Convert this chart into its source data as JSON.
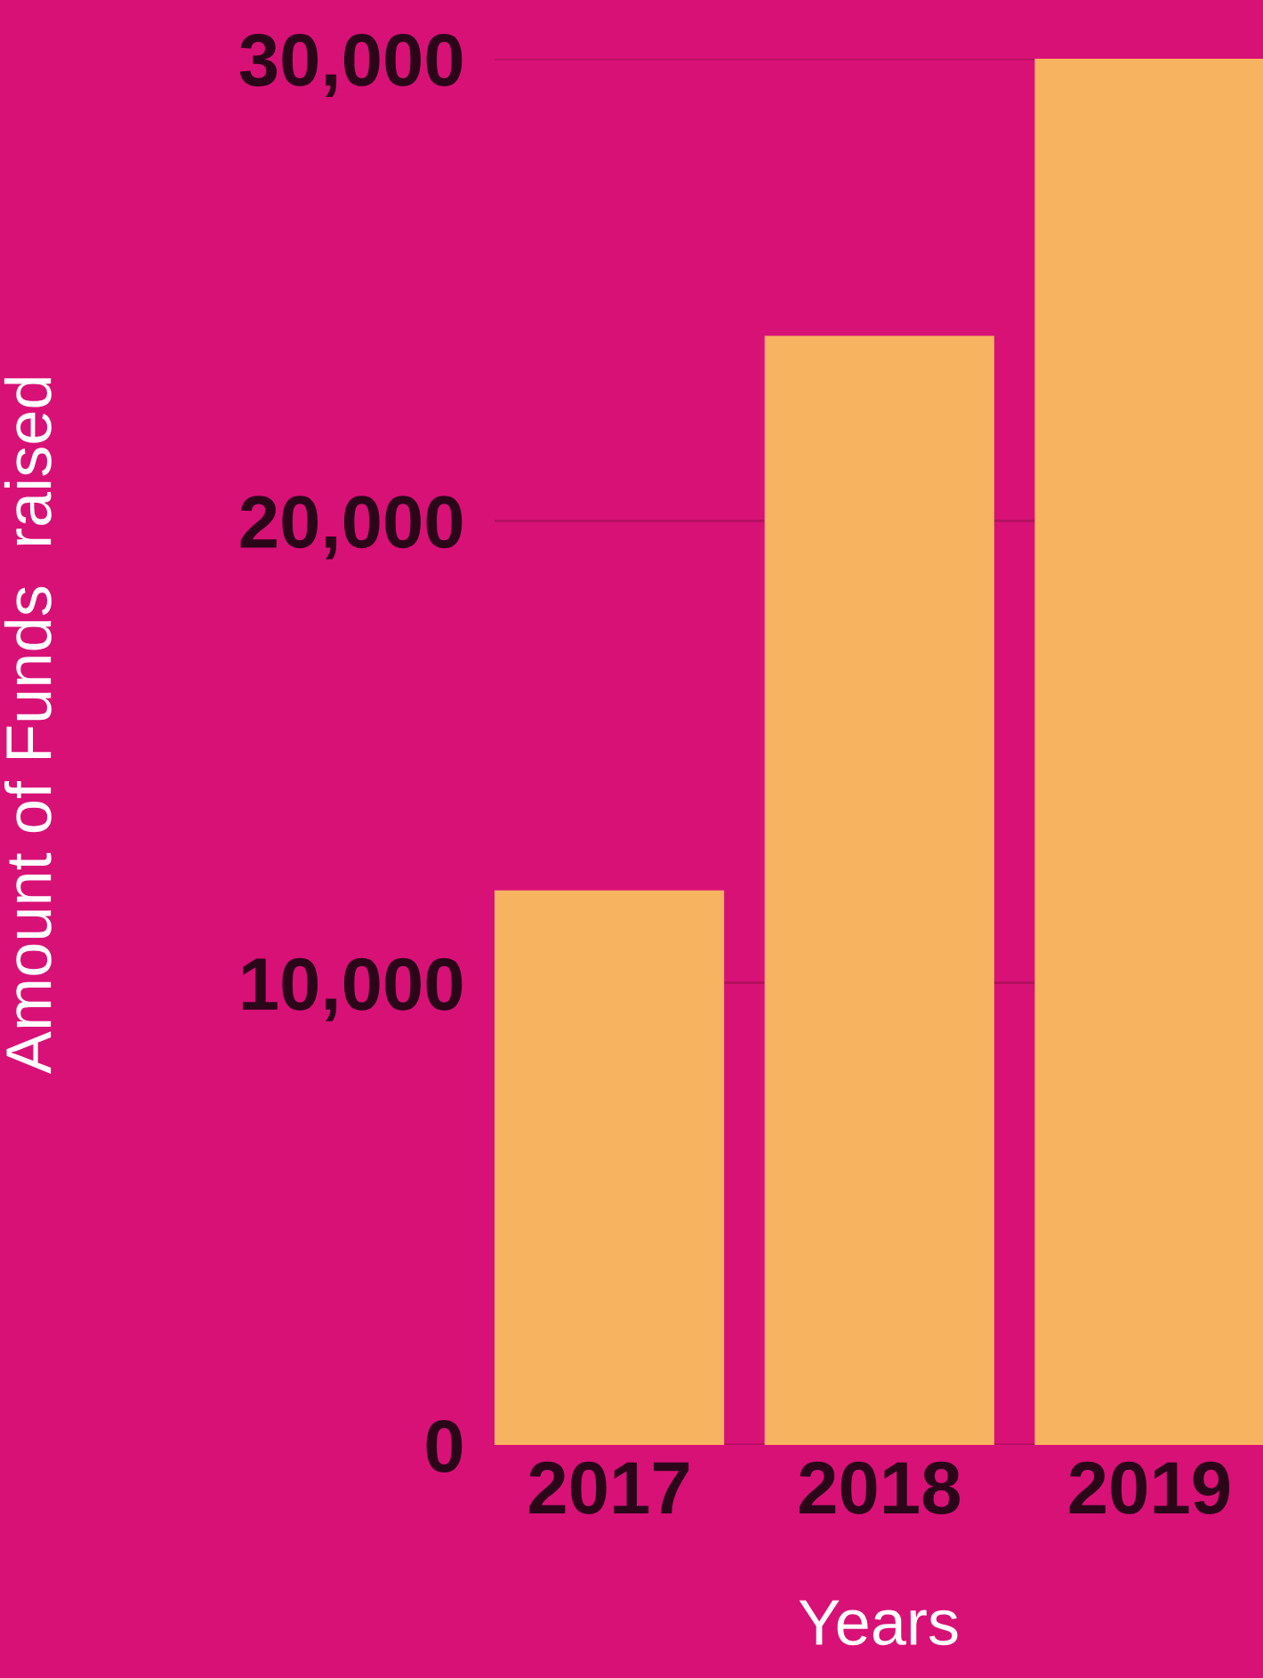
{
  "chart_data": {
    "type": "bar",
    "xlabel": "Years",
    "ylabel": "Amount of Funds  raised",
    "categories": [
      "2017",
      "2018",
      "2019"
    ],
    "values": [
      12000,
      24000,
      30000
    ],
    "color": "#f7b360",
    "ylim": [
      0,
      30000
    ],
    "yticks": [
      {
        "value": 0,
        "label": "0"
      },
      {
        "value": 10000,
        "label": "10,000"
      },
      {
        "value": 20000,
        "label": "20,000"
      },
      {
        "value": 30000,
        "label": "30,000"
      }
    ],
    "grid": "y"
  }
}
